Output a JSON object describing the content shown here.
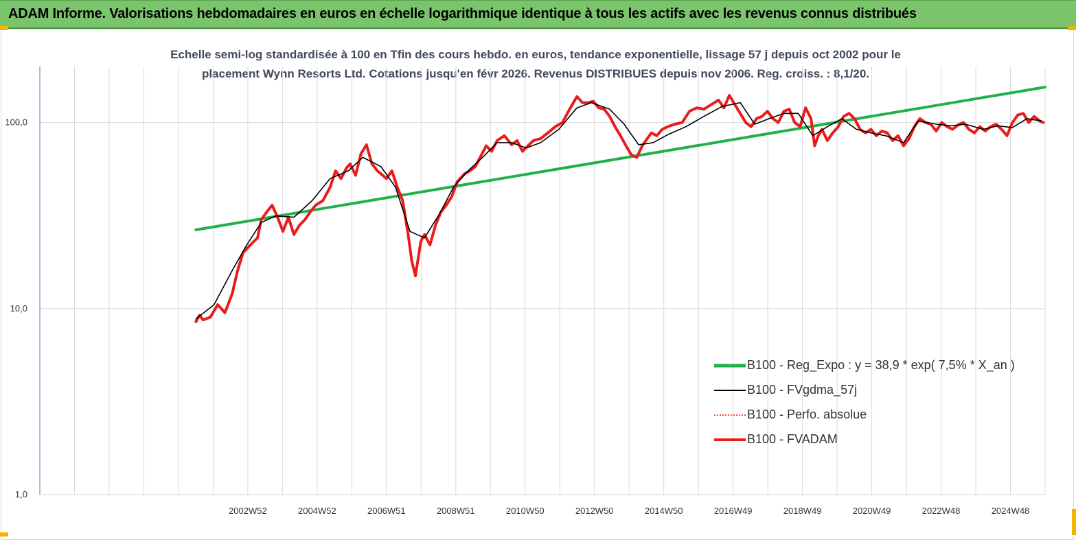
{
  "header": {
    "title": "ADAM Informe. Valorisations hebdomadaires en euros en échelle logarithmique identique à tous les actifs avec les revenus connus distribués",
    "background_color": "#7ac46b"
  },
  "chart_data": {
    "type": "line",
    "title_lines": [
      "Echelle semi-log standardisée à 100 en Tfin des cours hebdo. en euros, tendance exponentielle, lissage 57 j depuis oct 2002 pour le",
      "placement Wynn Resorts Ltd. Cotations jusqu'en févr 2026.  Revenus DISTRIBUES depuis nov 2006. Reg. croiss. : 8,1/20."
    ],
    "y_scale": "log",
    "ylim": [
      1,
      200
    ],
    "y_ticks": [
      "1,0",
      "10,0",
      "100,0"
    ],
    "x_tick_labels": [
      "2002W52",
      "2004W52",
      "2006W51",
      "2008W51",
      "2010W50",
      "2012W50",
      "2014W50",
      "2016W49",
      "2018W49",
      "2020W49",
      "2022W48",
      "2024W48"
    ],
    "xlim": [
      1998.5,
      2026.2
    ],
    "grid": "vertical and horizontal",
    "legend_position": "bottom-right",
    "series": [
      {
        "name": "B100 - Reg_Expo : y = 38,9 *  exp( 7,5% *  X_an )",
        "color": "#21b04b",
        "style": "thick",
        "x": [
          2002.8,
          2026.2
        ],
        "y": [
          26.5,
          155
        ]
      },
      {
        "name": "B100 - FVgdma_57j",
        "color": "#000000",
        "style": "thin",
        "x": [
          2002.8,
          2003.3,
          2003.8,
          2004.2,
          2004.6,
          2005.0,
          2005.5,
          2006.0,
          2006.5,
          2007.0,
          2007.4,
          2007.9,
          2008.3,
          2008.7,
          2009.1,
          2009.5,
          2009.9,
          2010.3,
          2010.7,
          2011.1,
          2011.5,
          2011.9,
          2012.3,
          2012.8,
          2013.3,
          2013.7,
          2014.2,
          2014.6,
          2015.0,
          2015.4,
          2015.8,
          2016.3,
          2016.8,
          2017.3,
          2017.8,
          2018.2,
          2018.6,
          2019.0,
          2019.4,
          2019.8,
          2020.2,
          2020.6,
          2021.0,
          2021.4,
          2021.8,
          2022.3,
          2022.7,
          2023.2,
          2023.6,
          2024.0,
          2024.5,
          2024.9,
          2025.3,
          2025.7,
          2026.1
        ],
        "y": [
          8.8,
          10.5,
          16,
          22,
          29,
          31.5,
          31,
          38,
          50,
          55,
          65,
          58,
          45,
          26,
          24,
          32,
          45,
          55,
          65,
          78,
          78,
          73,
          78,
          92,
          120,
          128,
          118,
          98,
          76,
          78,
          86,
          95,
          108,
          122,
          128,
          98,
          105,
          112,
          112,
          85,
          95,
          105,
          92,
          88,
          85,
          78,
          102,
          98,
          96,
          98,
          92,
          96,
          94,
          105,
          102
        ]
      },
      {
        "name": "B100 - Perfo. absolue",
        "color": "#ff0000",
        "style": "dotted",
        "x": [],
        "y": []
      },
      {
        "name": "B100 - FVADAM",
        "color": "#e81c1c",
        "style": "thick",
        "x": [
          2002.8,
          2002.9,
          2003.0,
          2003.2,
          2003.4,
          2003.5,
          2003.6,
          2003.8,
          2003.95,
          2004.1,
          2004.3,
          2004.5,
          2004.6,
          2004.75,
          2004.9,
          2005.05,
          2005.2,
          2005.35,
          2005.5,
          2005.65,
          2005.8,
          2005.95,
          2006.1,
          2006.3,
          2006.5,
          2006.65,
          2006.8,
          2006.95,
          2007.05,
          2007.2,
          2007.35,
          2007.5,
          2007.65,
          2007.8,
          2007.95,
          2008.05,
          2008.2,
          2008.35,
          2008.5,
          2008.65,
          2008.75,
          2008.85,
          2009.0,
          2009.1,
          2009.25,
          2009.4,
          2009.55,
          2009.7,
          2009.85,
          2010.0,
          2010.2,
          2010.35,
          2010.5,
          2010.65,
          2010.8,
          2010.95,
          2011.1,
          2011.3,
          2011.5,
          2011.65,
          2011.8,
          2011.95,
          2012.1,
          2012.3,
          2012.5,
          2012.7,
          2012.9,
          2013.1,
          2013.3,
          2013.45,
          2013.6,
          2013.75,
          2013.9,
          2014.05,
          2014.2,
          2014.35,
          2014.5,
          2014.65,
          2014.8,
          2014.95,
          2015.1,
          2015.2,
          2015.35,
          2015.5,
          2015.65,
          2015.8,
          2016.0,
          2016.2,
          2016.4,
          2016.6,
          2016.8,
          2017.0,
          2017.2,
          2017.35,
          2017.5,
          2017.65,
          2017.8,
          2017.95,
          2018.1,
          2018.25,
          2018.4,
          2018.55,
          2018.7,
          2018.85,
          2019.0,
          2019.15,
          2019.3,
          2019.45,
          2019.6,
          2019.75,
          2019.85,
          2019.95,
          2020.05,
          2020.2,
          2020.35,
          2020.5,
          2020.65,
          2020.8,
          2020.95,
          2021.1,
          2021.25,
          2021.4,
          2021.55,
          2021.7,
          2021.85,
          2022.0,
          2022.15,
          2022.3,
          2022.45,
          2022.6,
          2022.75,
          2022.9,
          2023.05,
          2023.2,
          2023.35,
          2023.5,
          2023.65,
          2023.8,
          2023.95,
          2024.1,
          2024.25,
          2024.4,
          2024.55,
          2024.7,
          2024.85,
          2025.0,
          2025.15,
          2025.3,
          2025.45,
          2025.6,
          2025.75,
          2025.9,
          2026.05,
          2026.15
        ],
        "y": [
          8.5,
          9.2,
          8.7,
          9.0,
          10.5,
          10.0,
          9.5,
          12,
          16,
          20,
          22,
          24,
          30,
          33,
          36,
          31,
          26,
          31,
          25,
          28,
          30,
          33,
          36,
          38,
          45,
          55,
          50,
          57,
          60,
          52,
          68,
          76,
          60,
          55,
          52,
          50,
          55,
          45,
          38,
          25,
          18,
          15,
          23,
          25,
          22,
          28,
          33,
          36,
          40,
          48,
          53,
          55,
          58,
          66,
          75,
          70,
          80,
          85,
          76,
          80,
          70,
          75,
          80,
          82,
          88,
          95,
          100,
          118,
          138,
          128,
          128,
          130,
          120,
          118,
          108,
          95,
          85,
          75,
          67,
          65,
          75,
          80,
          88,
          85,
          92,
          95,
          98,
          100,
          115,
          120,
          118,
          125,
          132,
          120,
          140,
          125,
          112,
          100,
          95,
          105,
          108,
          115,
          105,
          100,
          115,
          118,
          100,
          95,
          120,
          105,
          75,
          85,
          92,
          80,
          88,
          95,
          108,
          112,
          105,
          92,
          88,
          92,
          85,
          90,
          88,
          80,
          85,
          75,
          82,
          95,
          105,
          100,
          98,
          90,
          100,
          95,
          92,
          97,
          100,
          92,
          88,
          95,
          90,
          95,
          98,
          92,
          85,
          100,
          110,
          112,
          100,
          108,
          102,
          100
        ]
      }
    ]
  }
}
